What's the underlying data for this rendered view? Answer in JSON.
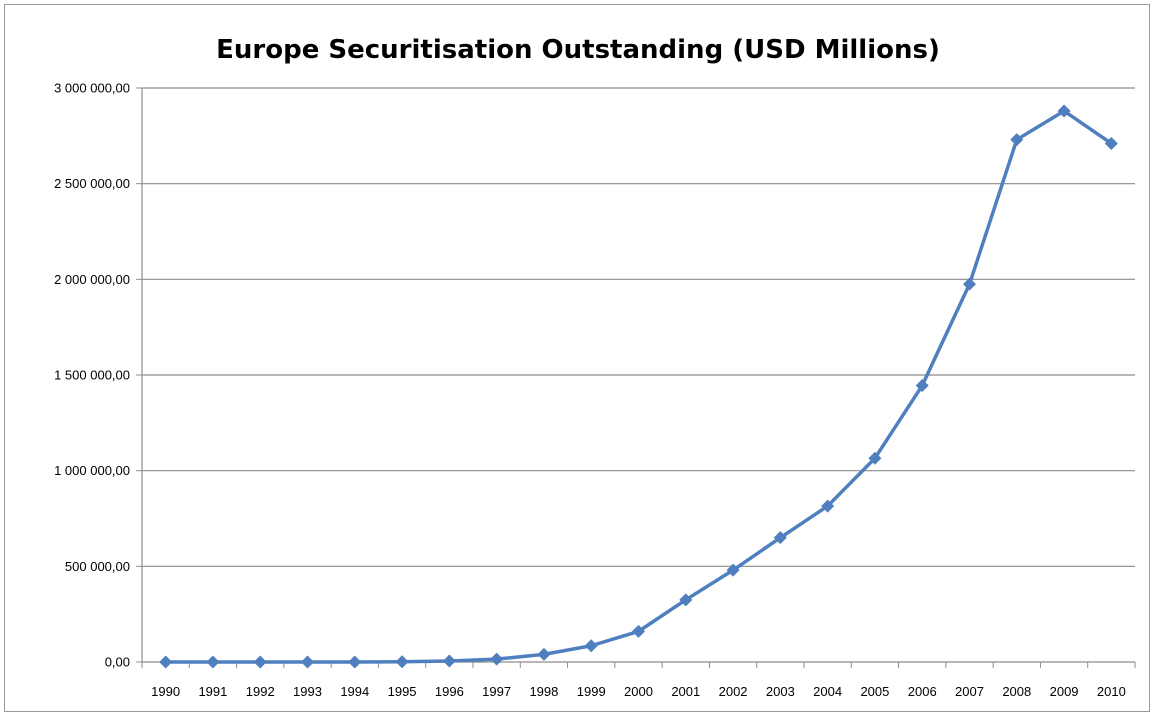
{
  "chart_data": {
    "type": "line",
    "title": "Europe Securitisation Outstanding (USD Millions)",
    "xlabel": "",
    "ylabel": "",
    "categories": [
      "1990",
      "1991",
      "1992",
      "1993",
      "1994",
      "1995",
      "1996",
      "1997",
      "1998",
      "1999",
      "2000",
      "2001",
      "2002",
      "2003",
      "2004",
      "2005",
      "2006",
      "2007",
      "2008",
      "2009",
      "2010"
    ],
    "series": [
      {
        "values": [
          0,
          0,
          0,
          0,
          0,
          1000,
          5000,
          15000,
          40000,
          85000,
          160000,
          325000,
          480000,
          650000,
          815000,
          1065000,
          1445000,
          1975000,
          2730000,
          2880000,
          2710000
        ]
      }
    ],
    "ylim": [
      0,
      3000000
    ],
    "yticks": [
      0,
      500000,
      1000000,
      1500000,
      2000000,
      2500000,
      3000000
    ],
    "ytick_labels": [
      "0,00",
      "500 000,00",
      "1 000 000,00",
      "1 500 000,00",
      "2 000 000,00",
      "2 500 000,00",
      "3 000 000,00"
    ],
    "grid": true,
    "legend": "none",
    "colors": {
      "line": "#4f7fbe",
      "grid": "#8c8c8c",
      "axis": "#8c8c8c"
    },
    "marker": "diamond"
  }
}
